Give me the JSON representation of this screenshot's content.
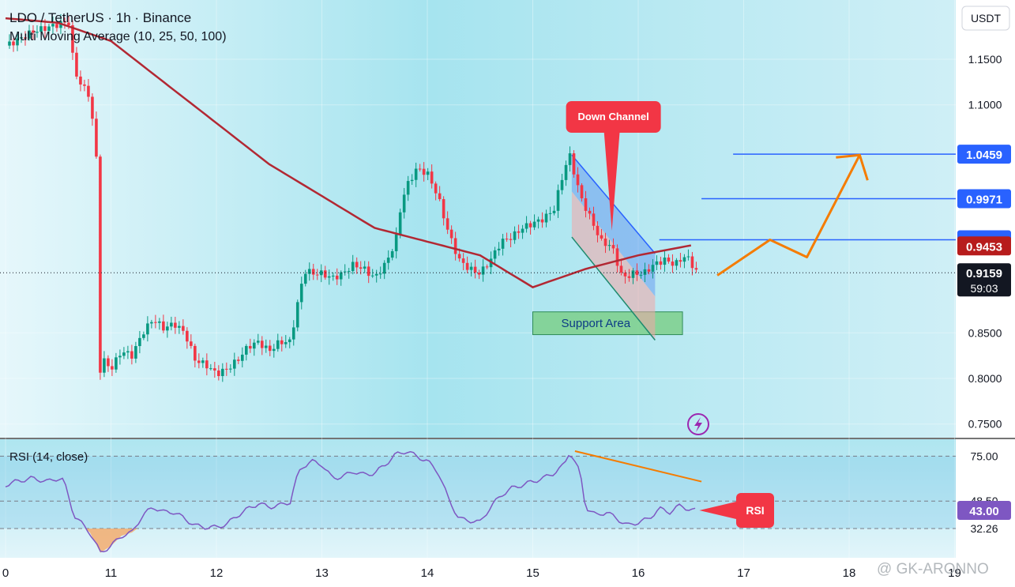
{
  "chart_data": {
    "type": "candlestick",
    "title": "LDO / TetherUS · 1h · Binance",
    "indicator": "Multi Moving Average (10, 25, 50, 100)",
    "currency": "USDT",
    "y_ticks": [
      "1.1500",
      "1.1000",
      "0.8500",
      "0.8000",
      "0.7500"
    ],
    "ylim": [
      0.735,
      1.215
    ],
    "x_ticks": [
      {
        "label": "0",
        "day": 10
      },
      {
        "label": "11",
        "day": 11
      },
      {
        "label": "12",
        "day": 12
      },
      {
        "label": "13",
        "day": 13
      },
      {
        "label": "14",
        "day": 14
      },
      {
        "label": "15",
        "day": 15
      },
      {
        "label": "16",
        "day": 16
      },
      {
        "label": "17",
        "day": 17
      },
      {
        "label": "18",
        "day": 18
      },
      {
        "label": "19",
        "day": 19
      }
    ],
    "price_path": [
      [
        10.0,
        1.165
      ],
      [
        10.1,
        1.17
      ],
      [
        10.25,
        1.18
      ],
      [
        10.4,
        1.185
      ],
      [
        10.55,
        1.19
      ],
      [
        10.6,
        1.19
      ],
      [
        10.65,
        1.14
      ],
      [
        10.7,
        1.125
      ],
      [
        10.8,
        1.11
      ],
      [
        10.88,
        1.02
      ],
      [
        10.9,
        0.79
      ],
      [
        10.93,
        0.82
      ],
      [
        11.0,
        0.81
      ],
      [
        11.1,
        0.83
      ],
      [
        11.2,
        0.825
      ],
      [
        11.3,
        0.85
      ],
      [
        11.4,
        0.865
      ],
      [
        11.5,
        0.855
      ],
      [
        11.6,
        0.86
      ],
      [
        11.7,
        0.85
      ],
      [
        11.8,
        0.82
      ],
      [
        11.9,
        0.815
      ],
      [
        12.0,
        0.805
      ],
      [
        12.1,
        0.81
      ],
      [
        12.2,
        0.82
      ],
      [
        12.3,
        0.835
      ],
      [
        12.4,
        0.84
      ],
      [
        12.5,
        0.83
      ],
      [
        12.6,
        0.84
      ],
      [
        12.7,
        0.84
      ],
      [
        12.75,
        0.87
      ],
      [
        12.8,
        0.9
      ],
      [
        12.85,
        0.92
      ],
      [
        12.9,
        0.915
      ],
      [
        13.0,
        0.915
      ],
      [
        13.1,
        0.91
      ],
      [
        13.2,
        0.915
      ],
      [
        13.3,
        0.925
      ],
      [
        13.4,
        0.92
      ],
      [
        13.5,
        0.91
      ],
      [
        13.6,
        0.925
      ],
      [
        13.7,
        0.95
      ],
      [
        13.75,
        0.99
      ],
      [
        13.8,
        1.01
      ],
      [
        13.9,
        1.03
      ],
      [
        14.0,
        1.025
      ],
      [
        14.1,
        1.0
      ],
      [
        14.2,
        0.96
      ],
      [
        14.3,
        0.93
      ],
      [
        14.4,
        0.92
      ],
      [
        14.5,
        0.915
      ],
      [
        14.6,
        0.93
      ],
      [
        14.7,
        0.95
      ],
      [
        14.8,
        0.955
      ],
      [
        14.9,
        0.965
      ],
      [
        15.0,
        0.97
      ],
      [
        15.1,
        0.975
      ],
      [
        15.2,
        0.985
      ],
      [
        15.3,
        1.03
      ],
      [
        15.35,
        1.045
      ],
      [
        15.45,
        1.0
      ],
      [
        15.55,
        0.975
      ],
      [
        15.65,
        0.95
      ],
      [
        15.75,
        0.945
      ],
      [
        15.85,
        0.91
      ],
      [
        15.95,
        0.915
      ],
      [
        16.05,
        0.915
      ],
      [
        16.15,
        0.925
      ],
      [
        16.25,
        0.93
      ],
      [
        16.35,
        0.925
      ],
      [
        16.45,
        0.935
      ],
      [
        16.55,
        0.918
      ]
    ],
    "moving_average": [
      [
        10.0,
        1.195
      ],
      [
        10.5,
        1.19
      ],
      [
        11.0,
        1.17
      ],
      [
        11.5,
        1.125
      ],
      [
        12.0,
        1.08
      ],
      [
        12.5,
        1.035
      ],
      [
        13.0,
        1.0
      ],
      [
        13.5,
        0.965
      ],
      [
        14.0,
        0.95
      ],
      [
        14.5,
        0.935
      ],
      [
        15.0,
        0.9
      ],
      [
        15.5,
        0.92
      ],
      [
        16.0,
        0.935
      ],
      [
        16.55,
        0.947
      ]
    ],
    "last_price": "0.9159",
    "countdown": "59:03",
    "price_labels": [
      {
        "value": 1.0459,
        "label": "1.0459",
        "color": "#2962ff",
        "line_from_day": 16.9
      },
      {
        "value": 0.9971,
        "label": "0.9971",
        "color": "#2962ff",
        "line_from_day": 16.6
      },
      {
        "value": 0.952,
        "label": "0.9520",
        "color": "#2962ff",
        "line_from_day": 16.2
      },
      {
        "value": 0.9453,
        "label": "0.9453",
        "color": "#b71c1c"
      }
    ],
    "annotations": {
      "down_channel": "Down Channel",
      "support_area": "Support Area",
      "rsi_callout": "RSI"
    },
    "projection_path": [
      [
        16.75,
        0.913
      ],
      [
        17.25,
        0.952
      ],
      [
        17.6,
        0.933
      ],
      [
        18.1,
        1.045
      ]
    ],
    "rsi": {
      "label": "RSI (14, close)",
      "ticks": [
        "75.00",
        "48.50",
        "32.26"
      ],
      "current": "43.00",
      "upper": 75,
      "lower": 32.26,
      "mid": 48.5,
      "ylim": [
        15,
        85
      ],
      "path": [
        [
          10.0,
          58
        ],
        [
          10.1,
          60
        ],
        [
          10.25,
          62
        ],
        [
          10.4,
          60
        ],
        [
          10.5,
          62
        ],
        [
          10.55,
          61
        ],
        [
          10.65,
          40
        ],
        [
          10.8,
          30
        ],
        [
          10.9,
          18
        ],
        [
          11.0,
          22
        ],
        [
          11.1,
          28
        ],
        [
          11.2,
          30
        ],
        [
          11.3,
          40
        ],
        [
          11.4,
          45
        ],
        [
          11.5,
          42
        ],
        [
          11.6,
          42
        ],
        [
          11.7,
          38
        ],
        [
          11.8,
          34
        ],
        [
          11.9,
          33
        ],
        [
          12.0,
          33
        ],
        [
          12.1,
          35
        ],
        [
          12.2,
          40
        ],
        [
          12.3,
          44
        ],
        [
          12.4,
          47
        ],
        [
          12.5,
          45
        ],
        [
          12.6,
          46
        ],
        [
          12.7,
          48
        ],
        [
          12.75,
          60
        ],
        [
          12.8,
          68
        ],
        [
          12.9,
          72
        ],
        [
          13.0,
          70
        ],
        [
          13.1,
          62
        ],
        [
          13.2,
          63
        ],
        [
          13.3,
          66
        ],
        [
          13.4,
          64
        ],
        [
          13.5,
          65
        ],
        [
          13.6,
          70
        ],
        [
          13.7,
          76
        ],
        [
          13.8,
          78
        ],
        [
          13.9,
          75
        ],
        [
          14.0,
          72
        ],
        [
          14.1,
          66
        ],
        [
          14.2,
          50
        ],
        [
          14.3,
          38
        ],
        [
          14.4,
          37
        ],
        [
          14.5,
          36
        ],
        [
          14.6,
          45
        ],
        [
          14.7,
          52
        ],
        [
          14.8,
          56
        ],
        [
          14.9,
          58
        ],
        [
          15.0,
          60
        ],
        [
          15.1,
          62
        ],
        [
          15.2,
          65
        ],
        [
          15.3,
          70
        ],
        [
          15.35,
          78
        ],
        [
          15.45,
          65
        ],
        [
          15.5,
          45
        ],
        [
          15.6,
          40
        ],
        [
          15.7,
          42
        ],
        [
          15.8,
          38
        ],
        [
          15.9,
          34
        ],
        [
          16.0,
          36
        ],
        [
          16.1,
          38
        ],
        [
          16.2,
          44
        ],
        [
          16.3,
          42
        ],
        [
          16.4,
          46
        ],
        [
          16.5,
          43
        ],
        [
          16.55,
          43
        ]
      ],
      "divergence_line": [
        [
          15.4,
          78
        ],
        [
          16.6,
          60
        ]
      ]
    }
  },
  "watermark": "@ GK-ARONNO"
}
